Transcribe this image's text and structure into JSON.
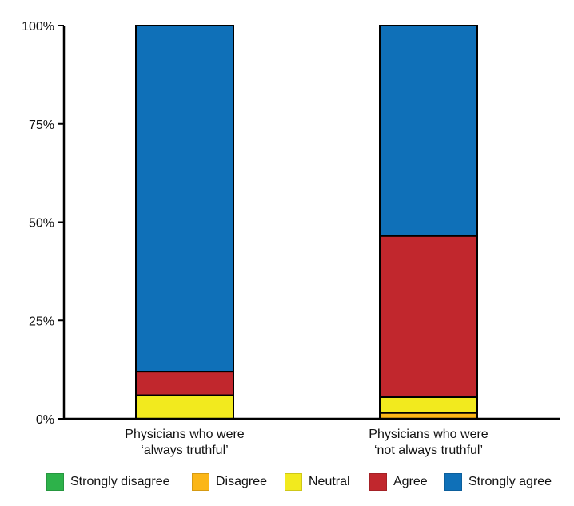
{
  "chart_data": {
    "type": "bar",
    "stacked": true,
    "categories": [
      [
        "Physicians who were",
        "‘always truthful’"
      ],
      [
        "Physicians who were",
        "‘not always truthful’"
      ]
    ],
    "series": [
      {
        "name": "Strongly disagree",
        "color": "#2db24a",
        "values": [
          0,
          0
        ]
      },
      {
        "name": "Disagree",
        "color": "#fbb617",
        "values": [
          0,
          1.5
        ]
      },
      {
        "name": "Neutral",
        "color": "#f2ea1e",
        "values": [
          6,
          4
        ]
      },
      {
        "name": "Agree",
        "color": "#c1272d",
        "values": [
          6,
          41
        ]
      },
      {
        "name": "Strongly agree",
        "color": "#0f70b8",
        "values": [
          88,
          53.5
        ]
      }
    ],
    "yticks": [
      "0%",
      "25%",
      "50%",
      "75%",
      "100%"
    ],
    "ylim": [
      0,
      100
    ],
    "title": "",
    "xlabel": "",
    "ylabel": "",
    "legend_position": "bottom"
  }
}
